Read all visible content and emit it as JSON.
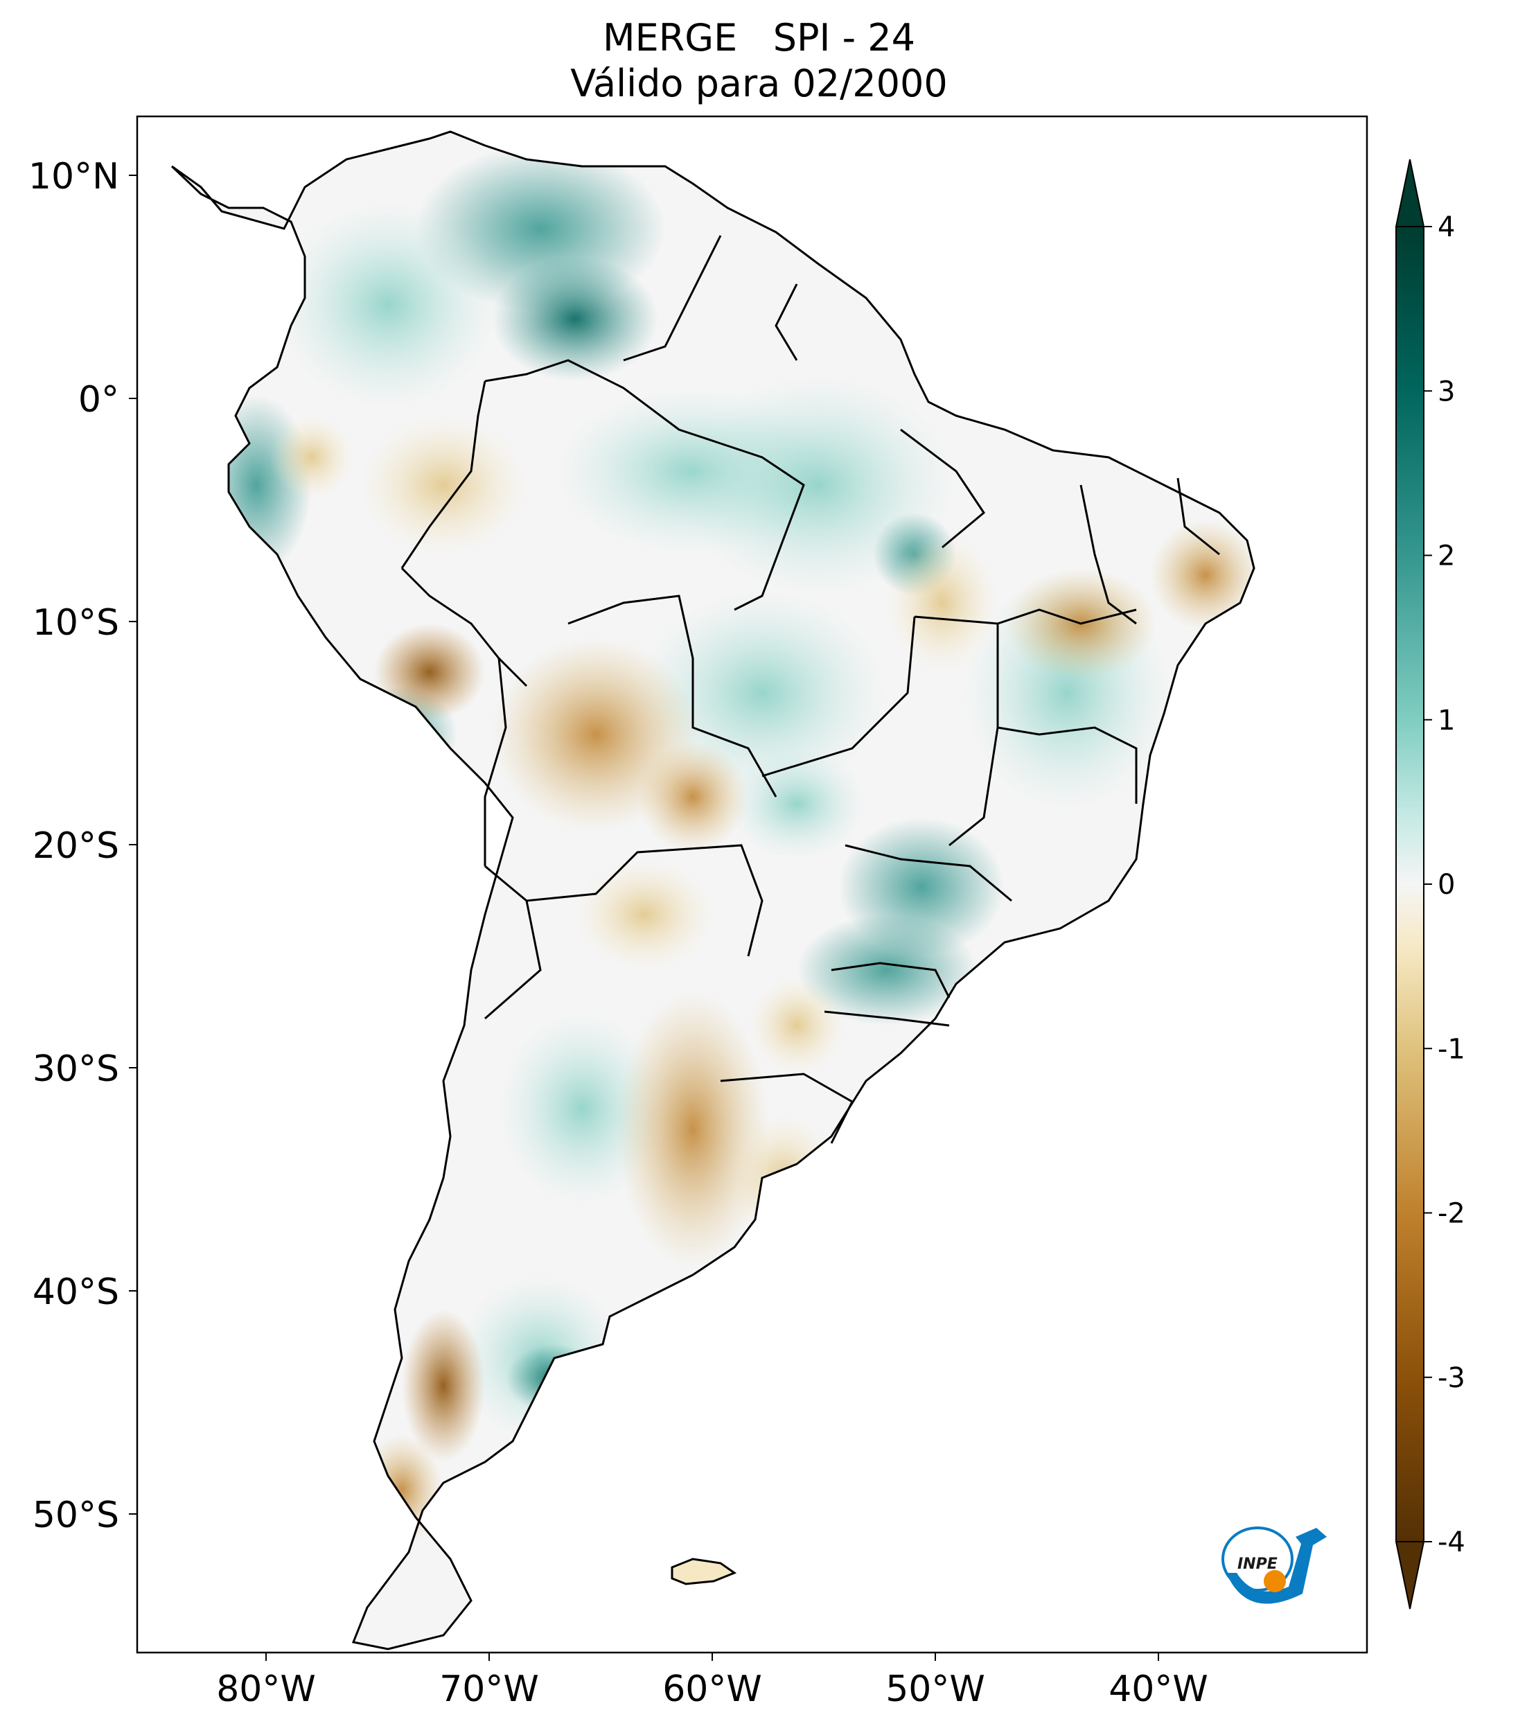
{
  "title": {
    "line1": "MERGE   SPI - 24",
    "line2": "Válido para 02/2000"
  },
  "map": {
    "lat_labels": [
      "10°N",
      "0°",
      "10°S",
      "20°S",
      "30°S",
      "40°S",
      "50°S"
    ],
    "lon_labels": [
      "80°W",
      "70°W",
      "60°W",
      "50°W",
      "40°W"
    ],
    "extent": {
      "lon": [
        -85,
        -30
      ],
      "lat": [
        -56,
        13
      ]
    }
  },
  "colorbar": {
    "tick_labels": [
      "4",
      "3",
      "2",
      "1",
      "0",
      "-1",
      "-2",
      "-3",
      "-4"
    ],
    "range": [
      -4,
      4
    ],
    "extend": "both",
    "colormap": "BrBG",
    "colors": {
      "dry_extreme": "#543005",
      "dry": "#bf812d",
      "dry_light": "#f6e8c3",
      "neutral": "#f5f5f5",
      "wet_light": "#c7eae5",
      "wet": "#35978f",
      "wet_extreme": "#003c30"
    }
  },
  "logo": {
    "text": "INPE"
  }
}
